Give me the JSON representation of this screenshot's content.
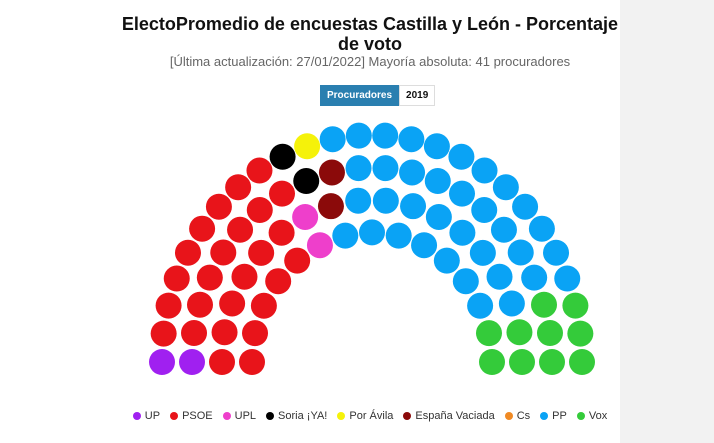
{
  "chart_data": {
    "type": "parliament",
    "title": "ElectoPromedio de encuestas Castilla y León - Porcentaje de voto",
    "subtitle": "[Última actualización: 27/01/2022] Mayoría absoluta: 41 procuradores",
    "tabs": [
      "Procuradores",
      "2019"
    ],
    "series": [
      {
        "name": "UP",
        "color": "#a020f0",
        "values": [
          2
        ]
      },
      {
        "name": "PSOE",
        "color": "#e8141a",
        "values": [
          26
        ]
      },
      {
        "name": "UPL",
        "color": "#ee3fcb",
        "values": [
          2
        ]
      },
      {
        "name": "Soria ¡YA!",
        "color": "#000000",
        "values": [
          2
        ]
      },
      {
        "name": "Por Ávila",
        "color": "#f5f20a",
        "values": [
          1
        ]
      },
      {
        "name": "España Vaciada",
        "color": "#8b0a0a",
        "values": [
          2
        ]
      },
      {
        "name": "Cs",
        "color": "#f08a24",
        "values": [
          0
        ]
      },
      {
        "name": "PP",
        "color": "#0aa3f5",
        "values": [
          36
        ]
      },
      {
        "name": "Vox",
        "color": "#34cb3a",
        "values": [
          10
        ]
      }
    ]
  }
}
